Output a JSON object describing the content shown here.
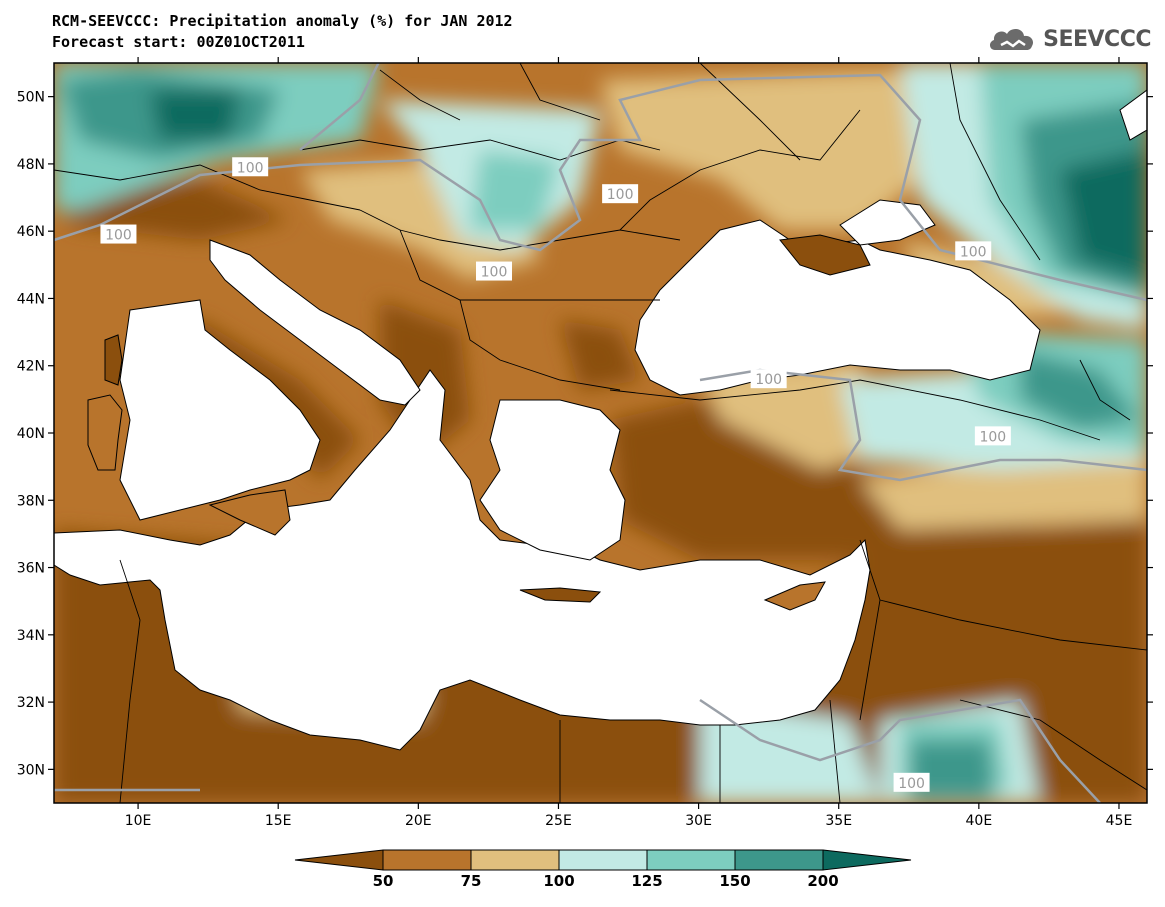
{
  "title": {
    "line1": "RCM-SEEVCCC: Precipitation anomaly (%) for JAN 2012",
    "line2": "Forecast start: 00Z01OCT2011"
  },
  "logo": {
    "text": "SEEVCCC",
    "icon": "cloud-icon"
  },
  "colors": {
    "lt50": "#8b4f0d",
    "c50_75": "#b8742c",
    "c75_100": "#e0bf7e",
    "c100_125": "#c2eae4",
    "c125_150": "#7dcdbf",
    "c150_200": "#3d978b",
    "gt200": "#0d6a5f",
    "sea": "#ffffff",
    "contour": "#9aa0a8",
    "border": "#000000"
  },
  "chart_data": {
    "type": "heatmap",
    "variable": "Precipitation anomaly (%)",
    "xlim": [
      7,
      46
    ],
    "ylim": [
      29,
      51
    ],
    "x_ticks": [
      10,
      15,
      20,
      25,
      30,
      35,
      40,
      45
    ],
    "y_ticks": [
      30,
      32,
      34,
      36,
      38,
      40,
      42,
      44,
      46,
      48,
      50
    ],
    "x_tick_labels": [
      "10E",
      "15E",
      "20E",
      "25E",
      "30E",
      "35E",
      "40E",
      "45E"
    ],
    "y_tick_labels": [
      "30N",
      "32N",
      "34N",
      "36N",
      "38N",
      "40N",
      "42N",
      "44N",
      "46N",
      "48N",
      "50N"
    ],
    "colorbar": {
      "levels": [
        50,
        75,
        100,
        125,
        150,
        200
      ],
      "labels": [
        "50",
        "75",
        "100",
        "125",
        "150",
        "200"
      ]
    },
    "contour_labels": [
      {
        "text": "100",
        "lon": 14.0,
        "lat": 47.9
      },
      {
        "text": "100",
        "lon": 27.2,
        "lat": 47.1
      },
      {
        "text": "100",
        "lon": 9.3,
        "lat": 45.9
      },
      {
        "text": "100",
        "lon": 22.7,
        "lat": 44.8
      },
      {
        "text": "100",
        "lon": 32.5,
        "lat": 41.6
      },
      {
        "text": "100",
        "lon": 39.8,
        "lat": 45.4
      },
      {
        "text": "100",
        "lon": 40.5,
        "lat": 39.9
      },
      {
        "text": "100",
        "lon": 37.6,
        "lat": 29.6
      }
    ]
  }
}
